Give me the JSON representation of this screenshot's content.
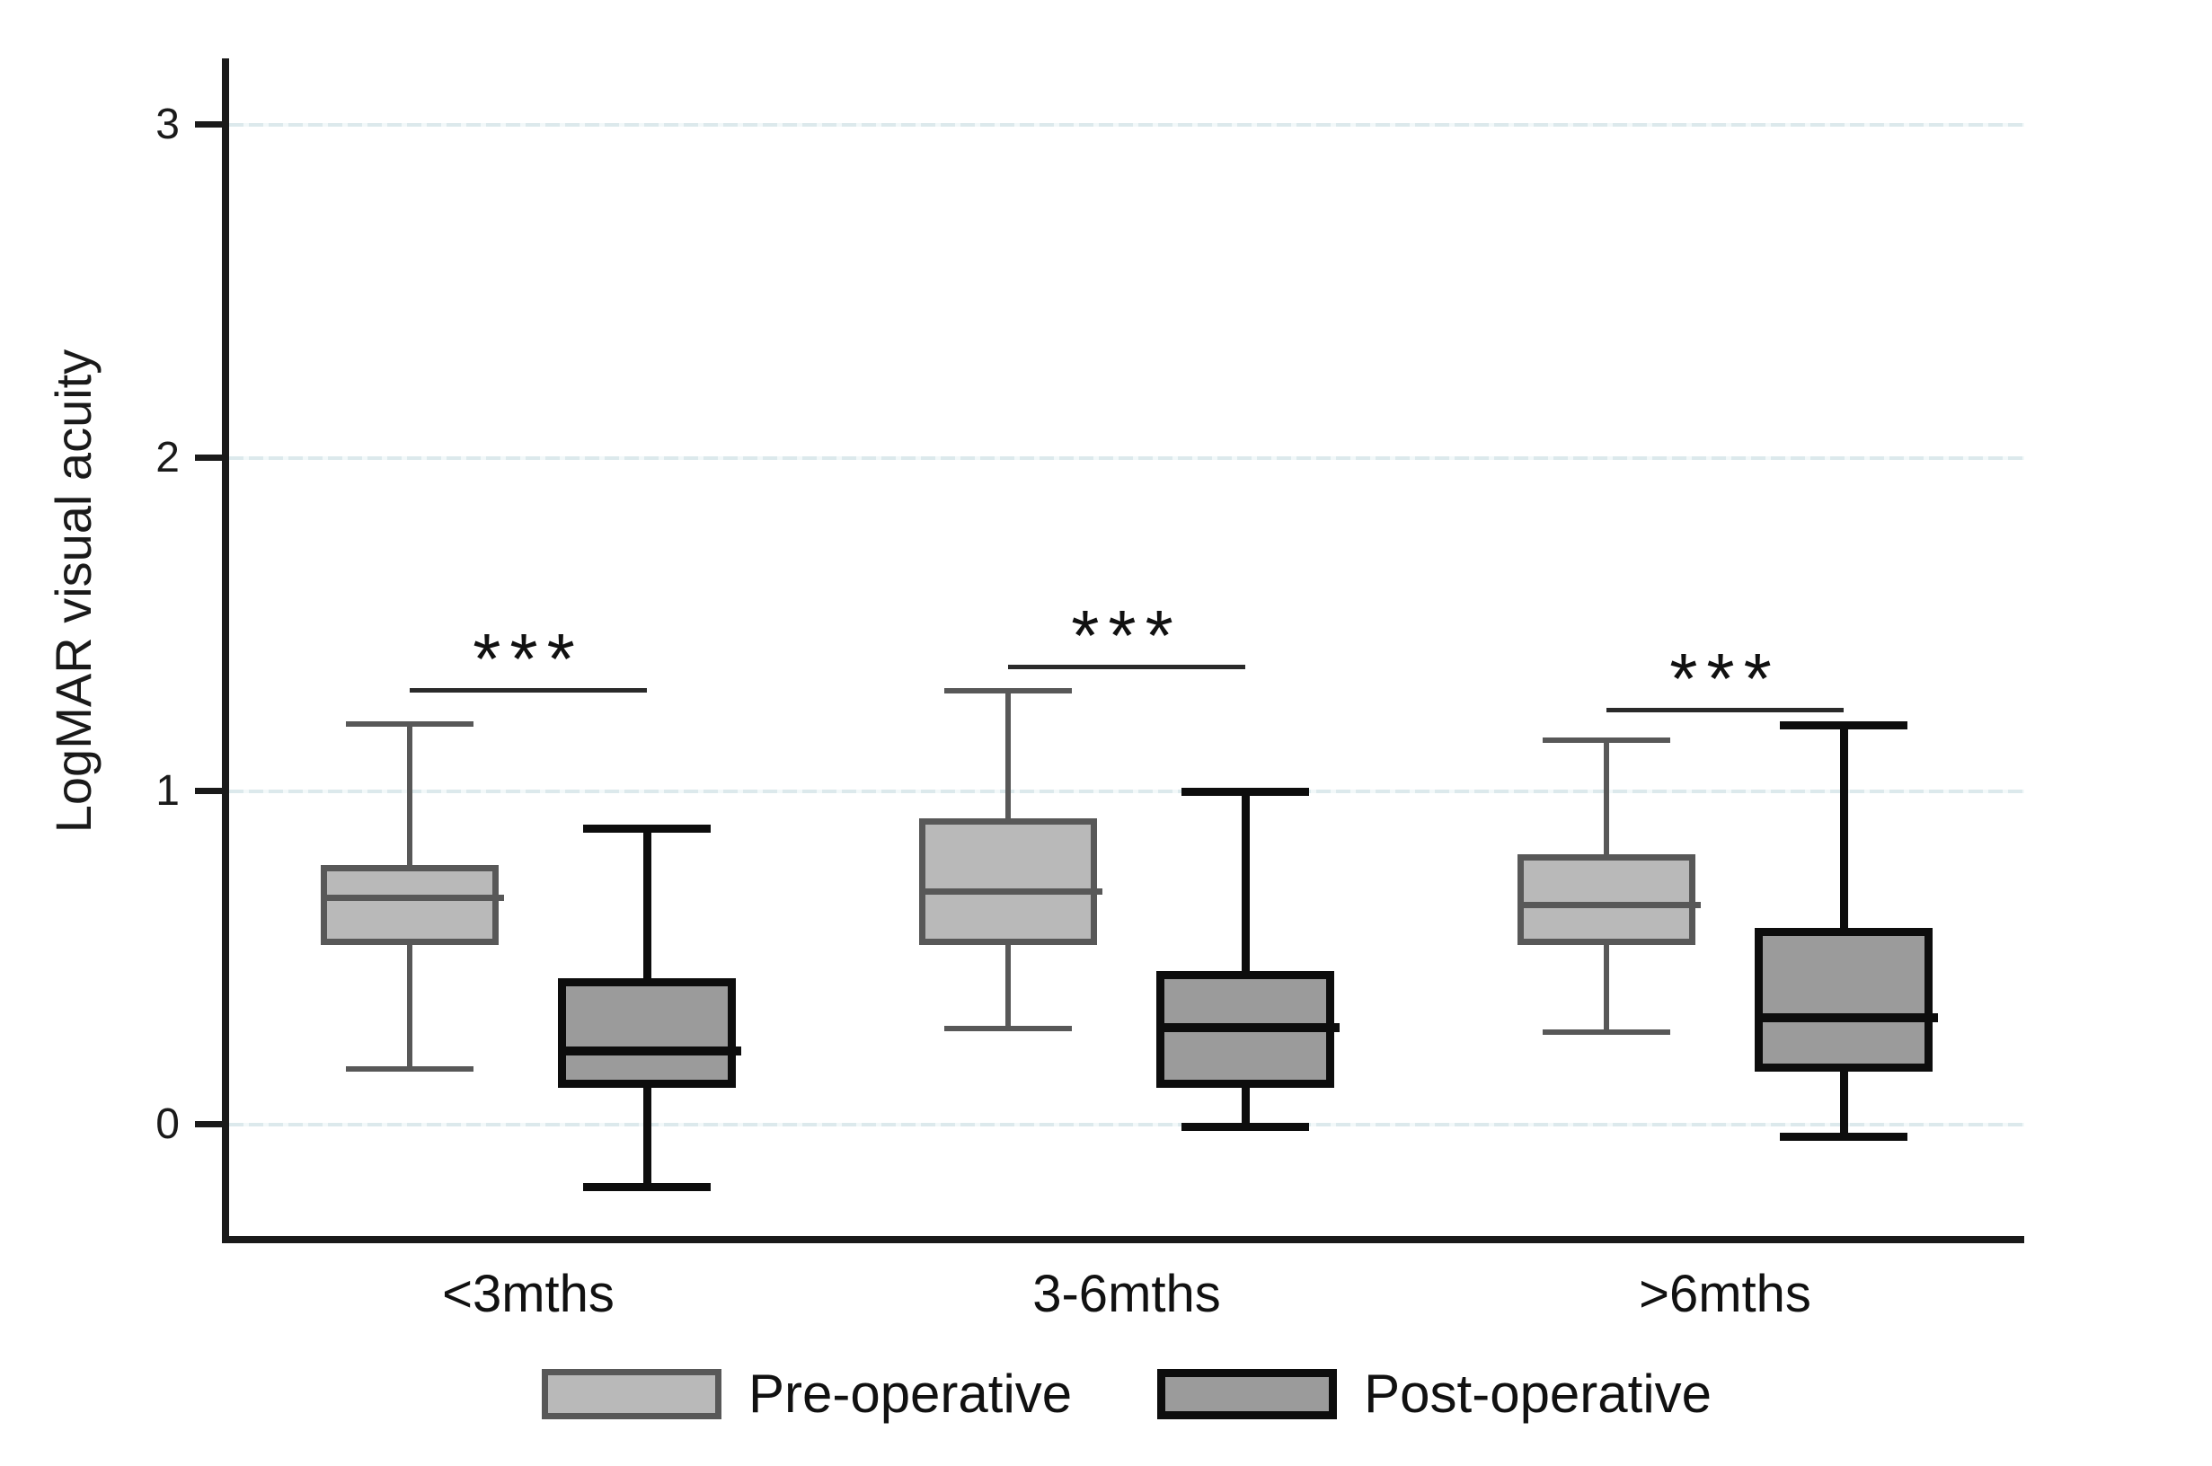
{
  "chart_data": {
    "type": "boxplot",
    "ylabel": "LogMAR visual acuity",
    "y_ticks": [
      0,
      1,
      2,
      3
    ],
    "ylim": [
      -0.35,
      3.2
    ],
    "grid": "on",
    "legend_position": "bottom",
    "categories": [
      "<3mths",
      "3-6mths",
      ">6mths"
    ],
    "series": [
      {
        "name": "Pre-operative",
        "fill_color": "#b9b9b9",
        "stroke_color": "#585858",
        "boxes": [
          {
            "category": "<3mths",
            "whisker_low": 0.17,
            "q1": 0.54,
            "median": 0.68,
            "q3": 0.78,
            "whisker_high": 1.2
          },
          {
            "category": "3-6mths",
            "whisker_low": 0.29,
            "q1": 0.54,
            "median": 0.7,
            "q3": 0.92,
            "whisker_high": 1.3
          },
          {
            "category": ">6mths",
            "whisker_low": 0.28,
            "q1": 0.54,
            "median": 0.66,
            "q3": 0.81,
            "whisker_high": 1.15
          }
        ]
      },
      {
        "name": "Post-operative",
        "fill_color": "#9b9b9b",
        "stroke_color": "#0d0d0d",
        "boxes": [
          {
            "category": "<3mths",
            "whisker_low": -0.18,
            "q1": 0.11,
            "median": 0.22,
            "q3": 0.44,
            "whisker_high": 0.89
          },
          {
            "category": "3-6mths",
            "whisker_low": 0.0,
            "q1": 0.11,
            "median": 0.29,
            "q3": 0.46,
            "whisker_high": 1.0
          },
          {
            "category": ">6mths",
            "whisker_low": -0.03,
            "q1": 0.16,
            "median": 0.32,
            "q3": 0.59,
            "whisker_high": 1.2
          }
        ]
      }
    ],
    "significance": [
      {
        "category": "<3mths",
        "label": "***",
        "bar_y_value": 1.31
      },
      {
        "category": "3-6mths",
        "label": "***",
        "bar_y_value": 1.38
      },
      {
        "category": ">6mths",
        "label": "***",
        "bar_y_value": 1.25
      }
    ],
    "legend": [
      {
        "label": "Pre-operative"
      },
      {
        "label": "Post-operative"
      }
    ],
    "colors": {
      "gridline": "#dce9ec",
      "axis": "#1a1a1a",
      "text": "#111111",
      "background": "#ffffff"
    }
  }
}
